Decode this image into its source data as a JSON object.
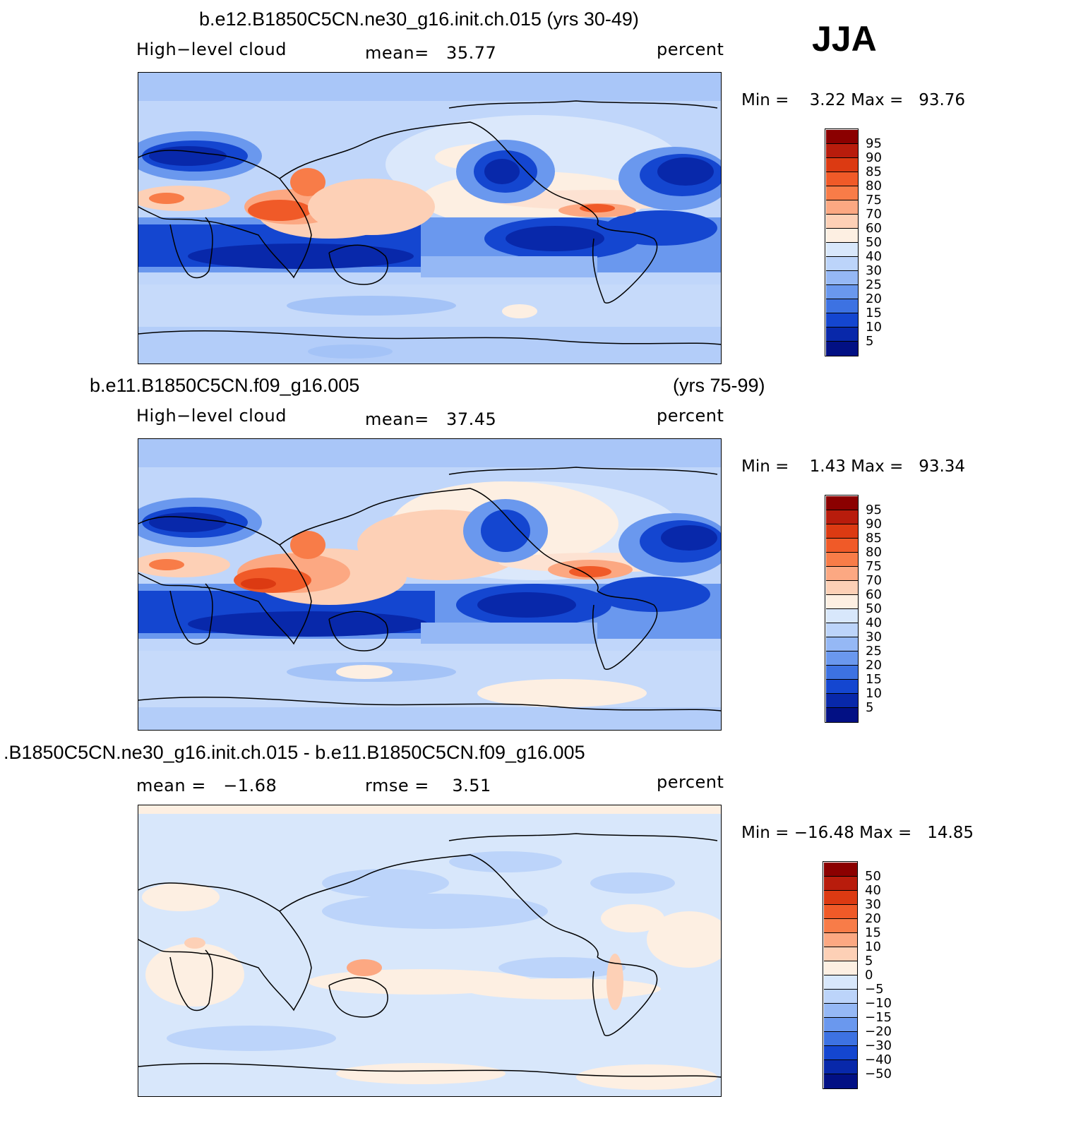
{
  "season": "JJA",
  "panels": [
    {
      "title": "b.e12.B1850C5CN.ne30_g16.init.ch.015 (yrs 30-49)",
      "title_right": "",
      "left_label": "High−level cloud",
      "center_label": "mean=   35.77",
      "units": "percent",
      "minmax": "Min =    3.22 Max =   93.76",
      "colorbar_labels": [
        "95",
        "90",
        "85",
        "80",
        "75",
        "70",
        "60",
        "50",
        "40",
        "30",
        "25",
        "20",
        "15",
        "10",
        "5"
      ]
    },
    {
      "title": "b.e11.B1850C5CN.f09_g16.005",
      "title_right": "(yrs 75-99)",
      "left_label": "High−level cloud",
      "center_label": "mean=   37.45",
      "units": "percent",
      "minmax": "Min =    1.43 Max =   93.34",
      "colorbar_labels": [
        "95",
        "90",
        "85",
        "80",
        "75",
        "70",
        "60",
        "50",
        "40",
        "30",
        "25",
        "20",
        "15",
        "10",
        "5"
      ]
    },
    {
      "title": ".B1850C5CN.ne30_g16.init.ch.015 - b.e11.B1850C5CN.f09_g16.005",
      "title_right": "",
      "left_label": "mean =   −1.68",
      "center_label": "rmse =    3.51",
      "units": "percent",
      "minmax": "Min = −16.48 Max =   14.85",
      "colorbar_labels": [
        "50",
        "40",
        "30",
        "20",
        "15",
        "10",
        "5",
        "0",
        "−5",
        "−10",
        "−15",
        "−20",
        "−30",
        "−40",
        "−50"
      ]
    }
  ],
  "colors": {
    "scale": [
      "#8b0000",
      "#b81c0c",
      "#dc3a12",
      "#f05a28",
      "#f87c48",
      "#fca882",
      "#fdd0b6",
      "#fdefe2",
      "#d8e7fb",
      "#bcd4fa",
      "#95b8f5",
      "#6a98ee",
      "#3d72e2",
      "#1446d0",
      "#0828aa",
      "#021084"
    ]
  }
}
